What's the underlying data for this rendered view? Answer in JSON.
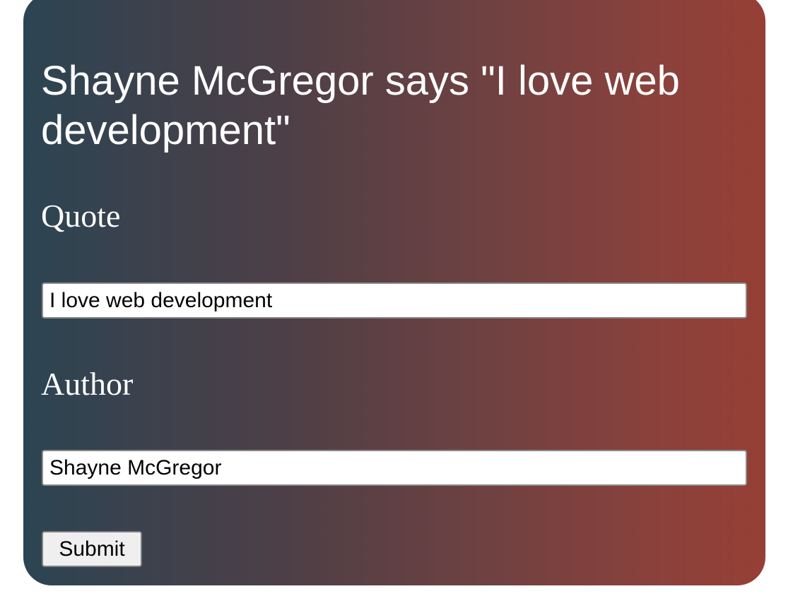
{
  "headline": "Shayne McGregor says \"I love web development\"",
  "form": {
    "quote_label": "Quote",
    "quote_value": "I love web development",
    "author_label": "Author",
    "author_value": "Shayne McGregor",
    "submit_label": "Submit"
  },
  "colors": {
    "gradient_start": "#2c4452",
    "gradient_end": "#963f35",
    "text": "#ffffff"
  }
}
